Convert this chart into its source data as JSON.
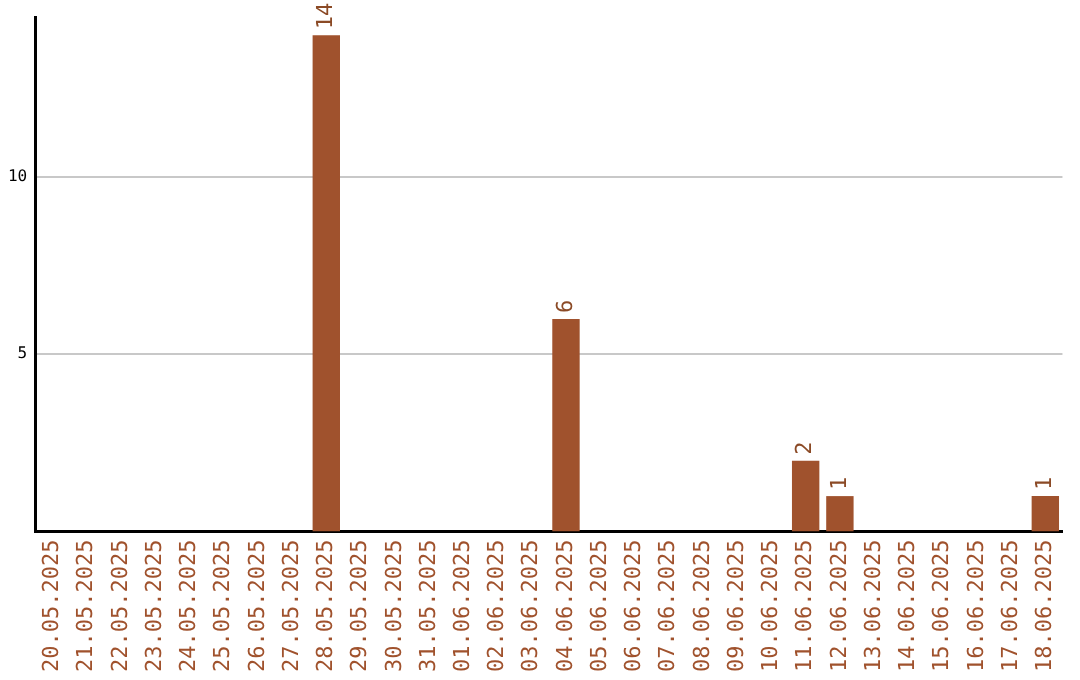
{
  "chart_data": {
    "type": "bar",
    "categories": [
      "20.05.2025",
      "21.05.2025",
      "22.05.2025",
      "23.05.2025",
      "24.05.2025",
      "25.05.2025",
      "26.05.2025",
      "27.05.2025",
      "28.05.2025",
      "29.05.2025",
      "30.05.2025",
      "31.05.2025",
      "01.06.2025",
      "02.06.2025",
      "03.06.2025",
      "04.06.2025",
      "05.06.2025",
      "06.06.2025",
      "07.06.2025",
      "08.06.2025",
      "09.06.2025",
      "10.06.2025",
      "11.06.2025",
      "12.06.2025",
      "13.06.2025",
      "14.06.2025",
      "15.06.2025",
      "16.06.2025",
      "17.06.2025",
      "18.06.2025"
    ],
    "values": [
      0,
      0,
      0,
      0,
      0,
      0,
      0,
      0,
      14,
      0,
      0,
      0,
      0,
      0,
      0,
      6,
      0,
      0,
      0,
      0,
      0,
      0,
      2,
      1,
      0,
      0,
      0,
      0,
      0,
      1
    ],
    "value_labels": [
      null,
      null,
      null,
      null,
      null,
      null,
      null,
      null,
      "14",
      null,
      null,
      null,
      null,
      null,
      null,
      "6",
      null,
      null,
      null,
      null,
      null,
      null,
      "2",
      "1",
      null,
      null,
      null,
      null,
      null,
      "1"
    ],
    "color": "#a0522d",
    "ylim": [
      0,
      14.5
    ],
    "yticks": [
      5,
      10
    ],
    "grid": "y",
    "legend": false
  }
}
